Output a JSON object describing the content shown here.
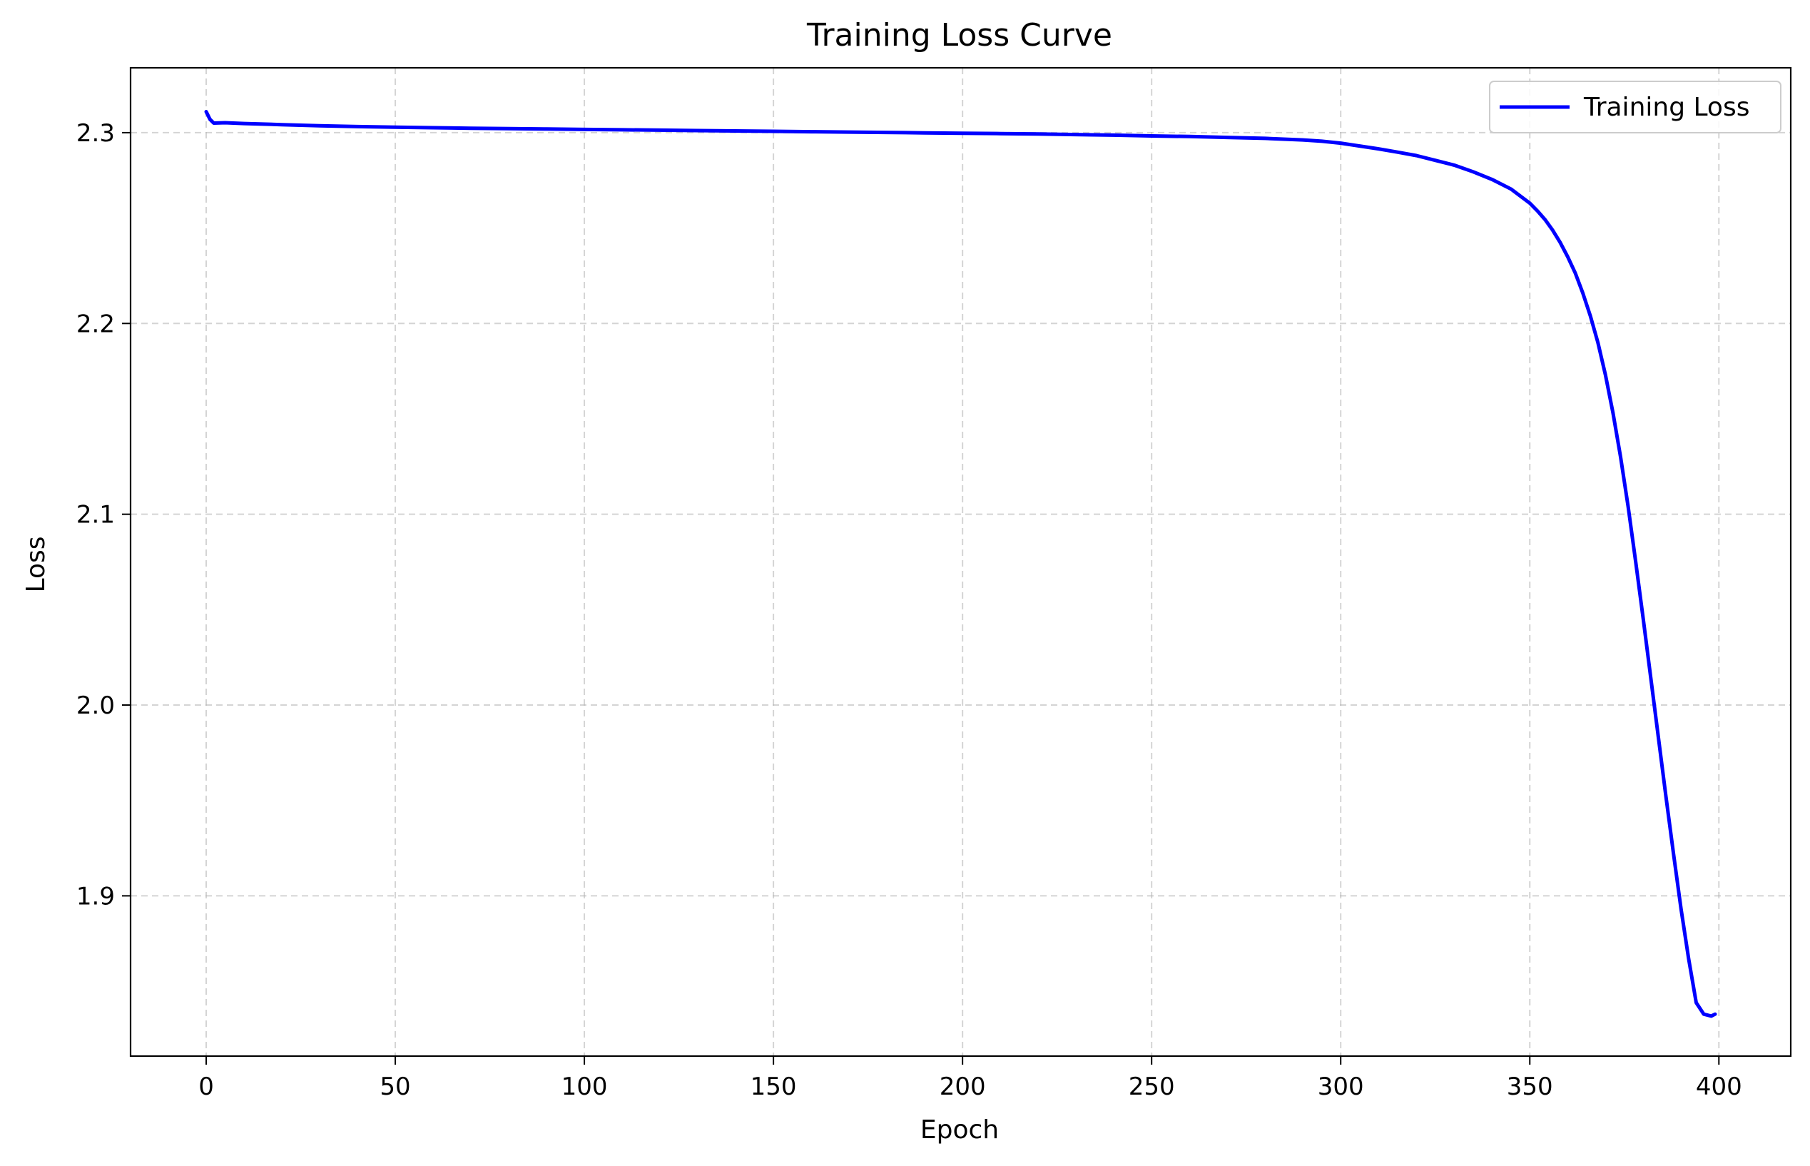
{
  "chart_data": {
    "type": "line",
    "title": "Training Loss Curve",
    "xlabel": "Epoch",
    "ylabel": "Loss",
    "xlim": [
      -20,
      419
    ],
    "ylim": [
      1.816,
      2.334
    ],
    "xticks": [
      0,
      50,
      100,
      150,
      200,
      250,
      300,
      350,
      400
    ],
    "xtick_labels": [
      "0",
      "50",
      "100",
      "150",
      "200",
      "250",
      "300",
      "350",
      "400"
    ],
    "yticks": [
      1.9,
      2.0,
      2.1,
      2.2,
      2.3
    ],
    "ytick_labels": [
      "1.9",
      "2.0",
      "2.1",
      "2.2",
      "2.3"
    ],
    "grid": true,
    "legend_position": "upper-right",
    "series": [
      {
        "name": "Training Loss",
        "color": "#0000ff",
        "x": [
          0,
          1,
          2,
          5,
          10,
          15,
          20,
          25,
          30,
          40,
          50,
          60,
          70,
          80,
          90,
          100,
          110,
          120,
          130,
          140,
          150,
          160,
          170,
          180,
          190,
          200,
          210,
          220,
          230,
          240,
          250,
          260,
          270,
          280,
          290,
          295,
          300,
          305,
          310,
          315,
          320,
          325,
          330,
          335,
          340,
          345,
          350,
          352,
          354,
          356,
          358,
          360,
          362,
          364,
          366,
          368,
          370,
          372,
          374,
          376,
          378,
          380,
          382,
          384,
          386,
          388,
          390,
          392,
          394,
          396,
          398,
          399
        ],
        "y": [
          2.311,
          2.307,
          2.305,
          2.3052,
          2.3048,
          2.3045,
          2.3042,
          2.3039,
          2.3036,
          2.3032,
          2.3029,
          2.3026,
          2.3023,
          2.3021,
          2.3019,
          2.3017,
          2.3015,
          2.3013,
          2.3011,
          2.3009,
          2.3007,
          2.3005,
          2.3003,
          2.3001,
          2.2999,
          2.2997,
          2.2995,
          2.2993,
          2.299,
          2.2987,
          2.2983,
          2.298,
          2.2975,
          2.297,
          2.2962,
          2.2955,
          2.2945,
          2.293,
          2.2915,
          2.2898,
          2.288,
          2.2855,
          2.283,
          2.2795,
          2.2755,
          2.2705,
          2.263,
          2.259,
          2.2545,
          2.249,
          2.2425,
          2.235,
          2.2265,
          2.216,
          2.204,
          2.19,
          2.173,
          2.153,
          2.13,
          2.104,
          2.075,
          2.045,
          2.014,
          1.983,
          1.952,
          1.922,
          1.893,
          1.867,
          1.844,
          1.838,
          1.837,
          1.838
        ]
      }
    ]
  }
}
